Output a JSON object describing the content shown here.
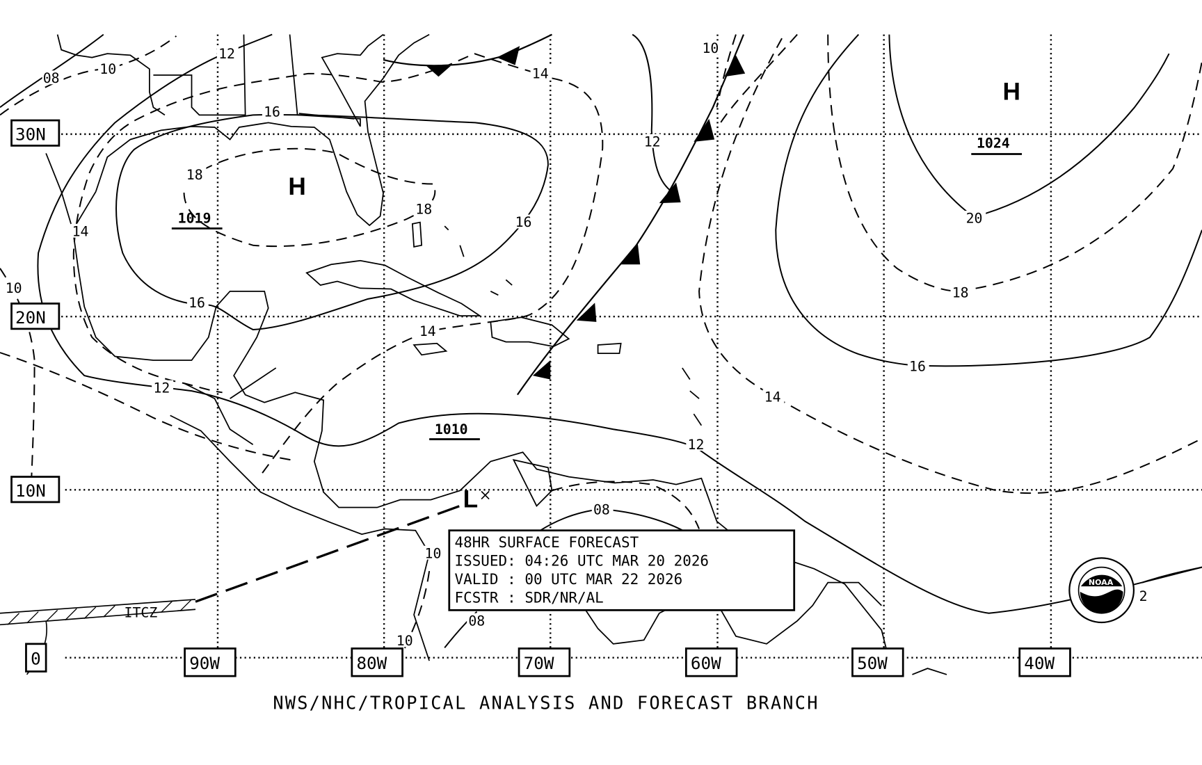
{
  "title_box": {
    "line1": "48HR SURFACE FORECAST",
    "line2": "ISSUED: 04:26 UTC MAR 20 2026",
    "line3": "VALID : 00 UTC MAR 22 2026",
    "line4": "FCSTR : SDR/NR/AL"
  },
  "footer": "NWS/NHC/TROPICAL ANALYSIS AND FORECAST BRANCH",
  "latitudes": [
    "30N",
    "20N",
    "10N",
    "0"
  ],
  "longitudes": [
    "90W",
    "80W",
    "70W",
    "60W",
    "50W",
    "40W"
  ],
  "pressure_centers": [
    {
      "symbol": "H",
      "value": "1019"
    },
    {
      "symbol": "H",
      "value": "1024"
    },
    {
      "symbol": "L",
      "value": ""
    }
  ],
  "low_value_label": "1010",
  "contour_labels": [
    "08",
    "10",
    "12",
    "16",
    "18",
    "18",
    "16",
    "16",
    "14",
    "14",
    "12",
    "14",
    "10",
    "12",
    "10",
    "08",
    "08",
    "10",
    "10",
    "12",
    "14",
    "16",
    "18",
    "20",
    "2"
  ],
  "itcz_label": "ITCZ",
  "logo": {
    "text": "NOAA",
    "ring_text": "NATIONAL OCEANIC AND ATMOSPHERIC ADMINISTRATION · U.S. DEPARTMENT OF COMMERCE"
  },
  "colors": {
    "ink": "#000000",
    "background": "#ffffff"
  }
}
